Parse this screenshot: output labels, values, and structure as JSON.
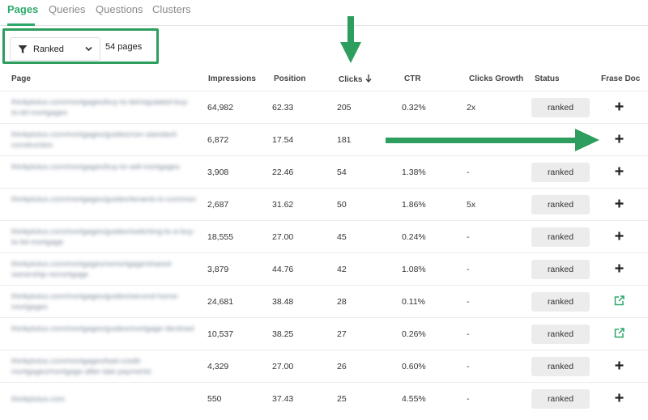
{
  "tabs": [
    "Pages",
    "Queries",
    "Questions",
    "Clusters"
  ],
  "filter": {
    "selected": "Ranked",
    "count_label": "54 pages"
  },
  "columns": [
    "Page",
    "Impressions",
    "Position",
    "Clicks",
    "CTR",
    "Clicks Growth",
    "Status",
    "Frase Doc"
  ],
  "sorted_column": "Clicks",
  "sort_direction": "descending",
  "rows": [
    {
      "page": "thinkplutus.com/mortgages/buy-to-let/regulated-buy-to-let-mortgages",
      "impressions": "64,982",
      "position": "62.33",
      "clicks": "205",
      "ctr": "0.32%",
      "growth": "2x",
      "status": "ranked",
      "doc_icon": "plus-icon"
    },
    {
      "page": "thinkplutus.com/mortgages/guides/non-standard-construction",
      "impressions": "6,872",
      "position": "17.54",
      "clicks": "181",
      "ctr": "",
      "growth": "",
      "status": "",
      "doc_icon": "plus-icon"
    },
    {
      "page": "thinkplutus.com/mortgages/buy-to-sell-mortgages",
      "impressions": "3,908",
      "position": "22.46",
      "clicks": "54",
      "ctr": "1.38%",
      "growth": "-",
      "status": "ranked",
      "doc_icon": "plus-icon"
    },
    {
      "page": "thinkplutus.com/mortgages/guides/tenants-in-common",
      "impressions": "2,687",
      "position": "31.62",
      "clicks": "50",
      "ctr": "1.86%",
      "growth": "5x",
      "status": "ranked",
      "doc_icon": "plus-icon"
    },
    {
      "page": "thinkplutus.com/mortgages/guides/switching-to-a-buy-to-let-mortgage",
      "impressions": "18,555",
      "position": "27.00",
      "clicks": "45",
      "ctr": "0.24%",
      "growth": "-",
      "status": "ranked",
      "doc_icon": "plus-icon"
    },
    {
      "page": "thinkplutus.com/mortgages/remortgage/shared-ownership-remortgage",
      "impressions": "3,879",
      "position": "44.76",
      "clicks": "42",
      "ctr": "1.08%",
      "growth": "-",
      "status": "ranked",
      "doc_icon": "plus-icon"
    },
    {
      "page": "thinkplutus.com/mortgages/guides/second-home-mortgages",
      "impressions": "24,681",
      "position": "38.48",
      "clicks": "28",
      "ctr": "0.11%",
      "growth": "-",
      "status": "ranked",
      "doc_icon": "external-link-icon"
    },
    {
      "page": "thinkplutus.com/mortgages/guides/mortgage-declined",
      "impressions": "10,537",
      "position": "38.25",
      "clicks": "27",
      "ctr": "0.26%",
      "growth": "-",
      "status": "ranked",
      "doc_icon": "external-link-icon"
    },
    {
      "page": "thinkplutus.com/mortgages/bad-credit-mortgages/mortgage-after-late-payments",
      "impressions": "4,329",
      "position": "27.00",
      "clicks": "26",
      "ctr": "0.60%",
      "growth": "-",
      "status": "ranked",
      "doc_icon": "plus-icon"
    },
    {
      "page": "thinkplutus.com",
      "impressions": "550",
      "position": "37.43",
      "clicks": "25",
      "ctr": "4.55%",
      "growth": "-",
      "status": "ranked",
      "doc_icon": "plus-icon"
    }
  ],
  "colors": {
    "accent": "#2ea86b",
    "annotation": "#2e9e5e",
    "badge_bg": "#ececec",
    "external_link": "#2ea86b"
  },
  "annotations": {
    "down_arrow_icon": "arrow-down-icon",
    "right_arrow_icon": "arrow-right-icon"
  }
}
